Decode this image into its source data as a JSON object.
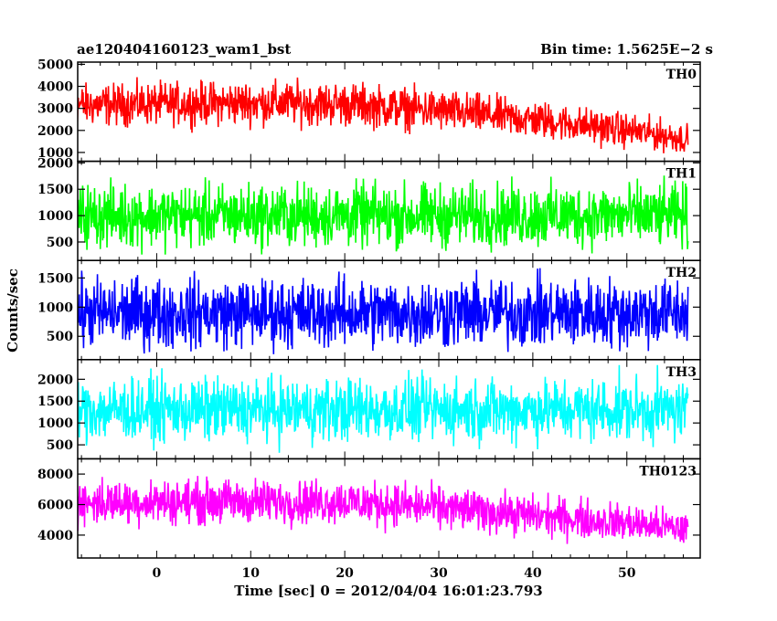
{
  "header": {
    "title": "ae120404160123_wam1_bst",
    "bin_time": "Bin time: 1.5625E−2 s"
  },
  "axes": {
    "xlabel": "Time [sec] 0 = 2012/04/04 16:01:23.793",
    "ylabel": "Counts/sec"
  },
  "chart_data": {
    "type": "line",
    "x_range": [
      -9.5,
      56.5
    ],
    "xlim": [
      -8.4,
      57.8
    ],
    "x_ticks": [
      0,
      10,
      20,
      30,
      40,
      50
    ],
    "bin_time_s": 0.015625,
    "panels": [
      {
        "name": "TH0",
        "color": "#ff0000",
        "ylim": [
          600,
          5100
        ],
        "y_ticks": [
          1000,
          2000,
          3000,
          4000,
          5000
        ],
        "trend_x": [
          -8,
          0,
          10,
          20,
          30,
          40,
          50,
          56
        ],
        "trend_mean": [
          3150,
          3200,
          3250,
          3200,
          2900,
          2500,
          2000,
          1650
        ],
        "trend_spread": [
          1100,
          1100,
          1150,
          1150,
          1100,
          1000,
          900,
          800
        ]
      },
      {
        "name": "TH1",
        "color": "#00ff00",
        "ylim": [
          150,
          2030
        ],
        "y_ticks": [
          500,
          1000,
          1500,
          2000
        ],
        "trend_x": [
          -8,
          56
        ],
        "trend_mean": [
          1000,
          1000
        ],
        "trend_spread": [
          700,
          700
        ]
      },
      {
        "name": "TH2",
        "color": "#0000ff",
        "ylim": [
          100,
          1800
        ],
        "y_ticks": [
          500,
          1000,
          1500
        ],
        "trend_x": [
          -8,
          56
        ],
        "trend_mean": [
          900,
          900
        ],
        "trend_spread": [
          700,
          700
        ]
      },
      {
        "name": "TH3",
        "color": "#00ffff",
        "ylim": [
          180,
          2450
        ],
        "y_ticks": [
          500,
          1000,
          1500,
          2000
        ],
        "trend_x": [
          -8,
          56
        ],
        "trend_mean": [
          1300,
          1300
        ],
        "trend_spread": [
          850,
          850
        ]
      },
      {
        "name": "TH0123",
        "color": "#ff00ff",
        "ylim": [
          2500,
          9000
        ],
        "y_ticks": [
          4000,
          6000,
          8000
        ],
        "trend_x": [
          -8,
          0,
          20,
          30,
          40,
          50,
          56
        ],
        "trend_mean": [
          6100,
          6200,
          6200,
          5800,
          5300,
          4800,
          4400
        ],
        "trend_spread": [
          1700,
          1700,
          1700,
          1650,
          1550,
          1450,
          1350
        ]
      }
    ]
  }
}
